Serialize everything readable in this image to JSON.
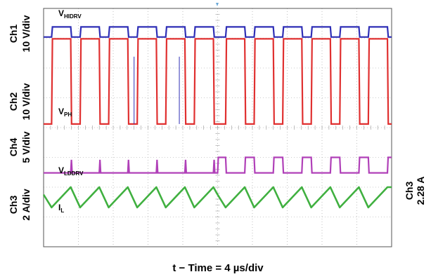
{
  "colors": {
    "background": "#ffffff",
    "grid": "#9a9a9a",
    "frame": "#555555",
    "hidrv": "#2f2fb6",
    "ph": "#e03030",
    "lddrv": "#b040b8",
    "il": "#40b040",
    "trigger_marker": "#6aa8d8"
  },
  "channel_labels": {
    "ch1": {
      "name": "Ch1",
      "scale": "10 V/div"
    },
    "ch2": {
      "name": "Ch2",
      "scale": "10 V/div"
    },
    "ch4": {
      "name": "Ch4",
      "scale": "5 V/div"
    },
    "ch3": {
      "name": "Ch3",
      "scale": "2 A/div"
    },
    "ch3_offset": {
      "name": "Ch3",
      "value": "2.28 A"
    }
  },
  "signal_labels": {
    "hidrv": {
      "main": "V",
      "sub": "HIDRV"
    },
    "ph": {
      "main": "V",
      "sub": "PH"
    },
    "lddrv": {
      "main": "V",
      "sub": "LDDRV"
    },
    "il": {
      "main": "I",
      "sub": "L"
    }
  },
  "x_axis_label": "t − Time = 4 µs/div",
  "chart_data": {
    "type": "line",
    "x_unit": "div",
    "x_range": [
      0,
      10
    ],
    "y_unit": "div",
    "y_range": [
      0,
      8
    ],
    "grid": true,
    "notes": "Switching converter waveforms; two bursts (left half: LDDRV stays low with narrow spikes; right half: LDDRV switches complementary to PH). Values in screen divisions.",
    "switching_period_div": 0.82,
    "first_edge_div": 0.23,
    "pulses_per_half": 6,
    "series": [
      {
        "name": "VHIDRV",
        "low_div": 7.04,
        "high_div": 7.38,
        "duty": 0.67
      },
      {
        "name": "VPH",
        "low_div": 4.12,
        "high_div": 6.98,
        "duty": 0.67
      },
      {
        "name": "VLDDRV",
        "low_div": 2.48,
        "high_div_right_half": 3.0,
        "spike_high_div_left_half": 2.92
      },
      {
        "name": "IL",
        "valley_div": 2.0,
        "peak_div": 1.32,
        "note": "triangle ramp, rising during PH high"
      }
    ]
  }
}
